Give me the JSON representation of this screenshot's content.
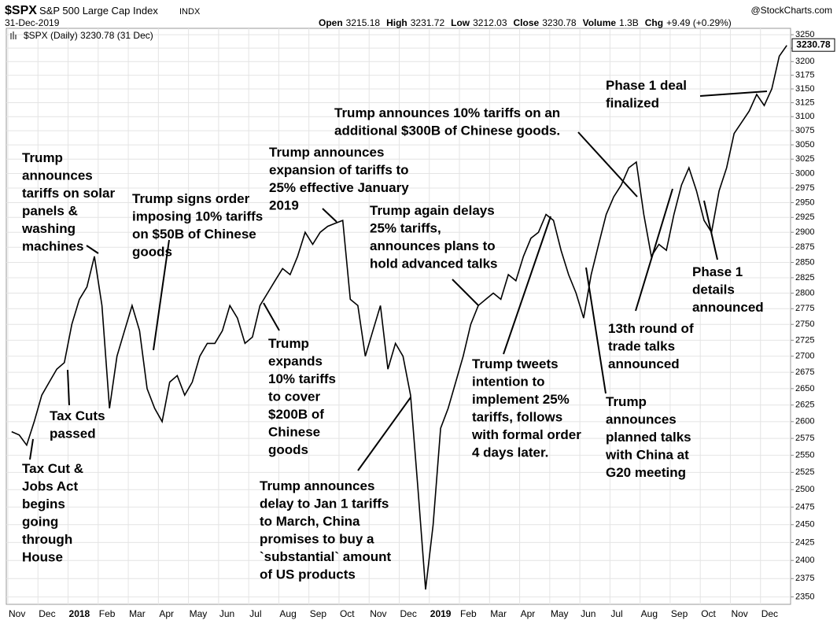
{
  "header": {
    "symbol": "$SPX",
    "name": "S&P 500 Large Cap Index",
    "exchange": "INDX",
    "date": "31-Dec-2019",
    "copyright": "@StockCharts.com",
    "stats": [
      {
        "label": "Open",
        "value": "3215.18"
      },
      {
        "label": "High",
        "value": "3231.72"
      },
      {
        "label": "Low",
        "value": "3212.03"
      },
      {
        "label": "Close",
        "value": "3230.78"
      },
      {
        "label": "Volume",
        "value": "1.3B"
      },
      {
        "label": "Chg",
        "value": "+9.49 (+0.29%)"
      }
    ]
  },
  "chart_data": {
    "type": "line",
    "log": true,
    "grid": true,
    "legend": "$SPX (Daily) 3230.78 (31 Dec)",
    "last_value": 3230.78,
    "categories": [
      "Nov",
      "Dec",
      "2018",
      "Feb",
      "Mar",
      "Apr",
      "May",
      "Jun",
      "Jul",
      "Aug",
      "Sep",
      "Oct",
      "Nov",
      "Dec",
      "2019",
      "Feb",
      "Mar",
      "Apr",
      "May",
      "Jun",
      "Jul",
      "Aug",
      "Sep",
      "Oct",
      "Nov",
      "Dec"
    ],
    "series": [
      {
        "name": "$SPX",
        "color": "#000000",
        "values": [
          [
            2585,
            2580,
            2565,
            2600
          ],
          [
            2640,
            2660,
            2680,
            2690
          ],
          [
            2750,
            2790,
            2810,
            2860
          ],
          [
            2780,
            2620,
            2700,
            2740
          ],
          [
            2780,
            2740,
            2650,
            2620
          ],
          [
            2600,
            2660,
            2670,
            2640
          ],
          [
            2660,
            2700,
            2720,
            2720
          ],
          [
            2740,
            2780,
            2760,
            2720
          ],
          [
            2730,
            2780,
            2800,
            2820
          ],
          [
            2840,
            2830,
            2860,
            2900
          ],
          [
            2880,
            2900,
            2910,
            2915
          ],
          [
            2920,
            2790,
            2780,
            2700
          ],
          [
            2740,
            2780,
            2680,
            2720
          ],
          [
            2700,
            2640,
            2500,
            2360
          ],
          [
            2450,
            2590,
            2620,
            2660
          ],
          [
            2700,
            2750,
            2780,
            2790
          ],
          [
            2800,
            2790,
            2830,
            2820
          ],
          [
            2860,
            2890,
            2900,
            2930
          ],
          [
            2920,
            2870,
            2830,
            2800
          ],
          [
            2760,
            2830,
            2880,
            2930
          ],
          [
            2960,
            2980,
            3010,
            3020
          ],
          [
            2930,
            2860,
            2880,
            2870
          ],
          [
            2930,
            2980,
            3010,
            2970
          ],
          [
            2920,
            2900,
            2970,
            3010
          ],
          [
            3070,
            3090,
            3110,
            3140
          ],
          [
            3120,
            3150,
            3210,
            3230
          ]
        ]
      }
    ],
    "ylim": [
      2340,
      3262
    ],
    "yticks": [
      2350,
      2375,
      2400,
      2425,
      2450,
      2475,
      2500,
      2525,
      2550,
      2575,
      2600,
      2625,
      2650,
      2675,
      2700,
      2725,
      2750,
      2775,
      2800,
      2825,
      2850,
      2875,
      2900,
      2925,
      2950,
      2975,
      3000,
      3025,
      3050,
      3075,
      3100,
      3125,
      3150,
      3175,
      3200,
      3225,
      3250
    ],
    "annotations": [
      {
        "lines": [
          "Trump",
          "announces",
          "tariffs on solar",
          "panels &",
          "washing",
          "machines"
        ]
      },
      {
        "lines": [
          "Trump signs order",
          "imposing 10% tariffs",
          "on $50B of Chinese",
          "goods"
        ]
      },
      {
        "lines": [
          "Trump announces",
          "expansion of tariffs to",
          "25% effective January",
          "2019"
        ]
      },
      {
        "lines": [
          "Trump again delays",
          "25% tariffs,",
          "announces plans to",
          "hold advanced talks"
        ]
      },
      {
        "lines": [
          "Trump announces 10% tariffs on an",
          "additional $300B of Chinese goods."
        ]
      },
      {
        "lines": [
          "Phase 1 deal",
          "finalized"
        ]
      },
      {
        "lines": [
          "Tax Cuts",
          "passed"
        ]
      },
      {
        "lines": [
          "Tax Cut &",
          "Jobs Act",
          "begins",
          "going",
          "through",
          "House"
        ]
      },
      {
        "lines": [
          "Trump",
          "expands",
          "10% tariffs",
          "to cover",
          "$200B of",
          "Chinese",
          "goods"
        ]
      },
      {
        "lines": [
          "Trump announces",
          "delay to Jan 1 tariffs",
          "to March, China",
          "promises to buy a",
          "`substantial` amount",
          "of US products"
        ]
      },
      {
        "lines": [
          "Trump tweets",
          "intention to",
          "implement 25%",
          "tariffs, follows",
          "with formal order",
          "4 days later."
        ]
      },
      {
        "lines": [
          "Trump",
          "announces",
          "planned talks",
          "with China at",
          "G20 meeting"
        ]
      },
      {
        "lines": [
          "13th round of",
          "trade talks",
          "announced"
        ]
      },
      {
        "lines": [
          "Phase 1",
          "details",
          "announced"
        ]
      }
    ]
  }
}
